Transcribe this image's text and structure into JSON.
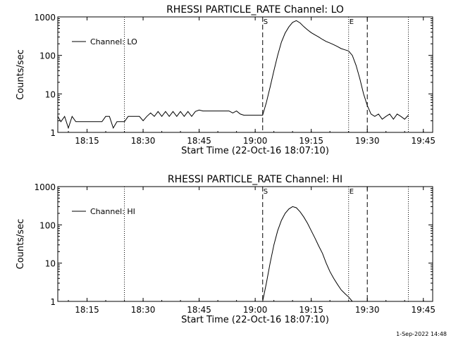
{
  "footer": {
    "timestamp": "1-Sep-2022 14:48"
  },
  "chart_data": [
    {
      "type": "line",
      "title": "RHESSI PARTICLE_RATE Channel: LO",
      "xlabel": "Start Time (22-Oct-16 18:07:10)",
      "ylabel": "Counts/sec",
      "yscale": "log",
      "ylim": [
        1,
        1000
      ],
      "xlim": [
        "18:07:10",
        "19:47:30"
      ],
      "x_ticks": [
        "18:15",
        "18:30",
        "18:45",
        "19:00",
        "19:15",
        "19:30",
        "19:45"
      ],
      "y_ticks": [
        "1",
        "10",
        "100",
        "1000"
      ],
      "legend": {
        "position": "top-left",
        "entries": [
          "Channel: LO"
        ]
      },
      "markers": [
        {
          "time": "18:25",
          "style": "dotted",
          "label": ""
        },
        {
          "time": "19:02",
          "style": "dashed",
          "label": "S"
        },
        {
          "time": "19:25",
          "style": "dotted",
          "label": "E"
        },
        {
          "time": "19:30",
          "style": "dashed",
          "label": ""
        },
        {
          "time": "19:41",
          "style": "dotted",
          "label": ""
        }
      ],
      "series": [
        {
          "name": "Channel: LO",
          "x": [
            "18:07:10",
            "18:08:00",
            "18:09:00",
            "18:10:00",
            "18:11:00",
            "18:12:00",
            "18:13:00",
            "18:14:00",
            "18:15:00",
            "18:16:00",
            "18:17:00",
            "18:18:00",
            "18:19:00",
            "18:20:00",
            "18:21:00",
            "18:22:00",
            "18:23:00",
            "18:24:00",
            "18:25:00",
            "18:26:00",
            "18:27:00",
            "18:28:00",
            "18:29:00",
            "18:30:00",
            "18:31:00",
            "18:32:00",
            "18:33:00",
            "18:34:00",
            "18:35:00",
            "18:36:00",
            "18:37:00",
            "18:38:00",
            "18:39:00",
            "18:40:00",
            "18:41:00",
            "18:42:00",
            "18:43:00",
            "18:44:00",
            "18:45:00",
            "18:46:00",
            "18:47:00",
            "18:48:00",
            "18:49:00",
            "18:50:00",
            "18:51:00",
            "18:52:00",
            "18:53:00",
            "18:54:00",
            "18:55:00",
            "18:56:00",
            "18:57:00",
            "18:58:00",
            "18:59:00",
            "19:00:00",
            "19:01:00",
            "19:02:00",
            "19:03:00",
            "19:04:00",
            "19:05:00",
            "19:06:00",
            "19:07:00",
            "19:08:00",
            "19:09:00",
            "19:10:00",
            "19:11:00",
            "19:12:00",
            "19:13:00",
            "19:14:00",
            "19:15:00",
            "19:16:00",
            "19:17:00",
            "19:18:00",
            "19:19:00",
            "19:20:00",
            "19:21:00",
            "19:22:00",
            "19:23:00",
            "19:24:00",
            "19:25:00",
            "19:26:00",
            "19:27:00",
            "19:28:00",
            "19:29:00",
            "19:30:00",
            "19:31:00",
            "19:32:00",
            "19:33:00",
            "19:34:00",
            "19:35:00",
            "19:36:00",
            "19:37:00",
            "19:38:00",
            "19:39:00",
            "19:40:00",
            "19:41:00"
          ],
          "y": [
            2.6,
            1.9,
            2.6,
            1.3,
            2.6,
            1.9,
            1.9,
            1.9,
            1.9,
            1.9,
            1.9,
            1.9,
            1.9,
            2.6,
            2.6,
            1.3,
            1.9,
            1.9,
            1.9,
            2.6,
            2.6,
            2.6,
            2.6,
            2.0,
            2.6,
            3.2,
            2.6,
            3.5,
            2.6,
            3.5,
            2.6,
            3.5,
            2.6,
            3.5,
            2.6,
            3.5,
            2.6,
            3.5,
            3.8,
            3.6,
            3.6,
            3.6,
            3.6,
            3.6,
            3.6,
            3.6,
            3.6,
            3.2,
            3.6,
            3.0,
            2.8,
            2.8,
            2.8,
            2.8,
            2.8,
            2.8,
            6,
            15,
            40,
            100,
            220,
            380,
            550,
            720,
            800,
            700,
            560,
            460,
            390,
            340,
            300,
            260,
            230,
            210,
            190,
            170,
            150,
            140,
            130,
            100,
            55,
            25,
            10,
            5,
            3,
            2.6,
            3,
            2.2,
            2.6,
            3,
            2.2,
            3,
            2.6,
            2.2,
            2.8
          ]
        }
      ]
    },
    {
      "type": "line",
      "title": "RHESSI PARTICLE_RATE Channel: HI",
      "xlabel": "Start Time (22-Oct-16 18:07:10)",
      "ylabel": "Counts/sec",
      "yscale": "log",
      "ylim": [
        1,
        1000
      ],
      "xlim": [
        "18:07:10",
        "19:47:30"
      ],
      "x_ticks": [
        "18:15",
        "18:30",
        "18:45",
        "19:00",
        "19:15",
        "19:30",
        "19:45"
      ],
      "y_ticks": [
        "1",
        "10",
        "100",
        "1000"
      ],
      "legend": {
        "position": "top-left",
        "entries": [
          "Channel: HI"
        ]
      },
      "markers": [
        {
          "time": "18:25",
          "style": "dotted",
          "label": ""
        },
        {
          "time": "19:02",
          "style": "dashed",
          "label": "S"
        },
        {
          "time": "19:25",
          "style": "dotted",
          "label": "E"
        },
        {
          "time": "19:30",
          "style": "dashed",
          "label": ""
        },
        {
          "time": "19:41",
          "style": "dotted",
          "label": ""
        }
      ],
      "series": [
        {
          "name": "Channel: HI",
          "x": [
            "19:02:00",
            "19:03:00",
            "19:04:00",
            "19:05:00",
            "19:06:00",
            "19:07:00",
            "19:08:00",
            "19:09:00",
            "19:10:00",
            "19:11:00",
            "19:12:00",
            "19:13:00",
            "19:14:00",
            "19:15:00",
            "19:16:00",
            "19:17:00",
            "19:18:00",
            "19:19:00",
            "19:20:00",
            "19:21:00",
            "19:22:00",
            "19:23:00",
            "19:24:00",
            "19:25:00",
            "19:26:00"
          ],
          "y": [
            1.0,
            3,
            10,
            30,
            70,
            130,
            200,
            260,
            300,
            280,
            220,
            160,
            110,
            70,
            45,
            28,
            18,
            10,
            6,
            4,
            2.8,
            2,
            1.6,
            1.3,
            1.0
          ]
        }
      ]
    }
  ]
}
